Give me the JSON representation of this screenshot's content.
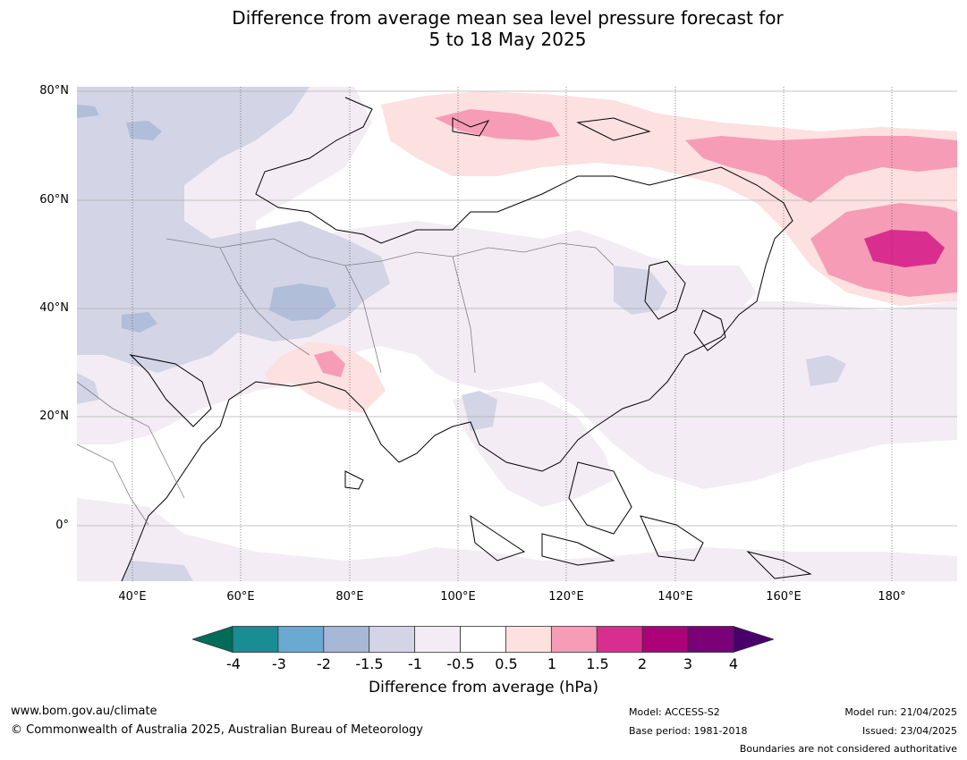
{
  "title": {
    "line1": "Difference from average mean sea level pressure forecast for",
    "line2": "5 to 18 May 2025"
  },
  "map": {
    "lat_labels": [
      "80°N",
      "60°N",
      "40°N",
      "20°N",
      "0°"
    ],
    "lon_labels": [
      "40°E",
      "60°E",
      "80°E",
      "100°E",
      "120°E",
      "140°E",
      "160°E",
      "180°"
    ],
    "extent": {
      "lon_min": 30,
      "lon_max": 192,
      "lat_min": -10,
      "lat_max": 81
    }
  },
  "colorbar": {
    "ticks": [
      "-4",
      "-3",
      "-2",
      "-1.5",
      "-1",
      "-0.5",
      "0.5",
      "1",
      "1.5",
      "2",
      "3",
      "4"
    ],
    "colors": [
      "#1a8c93",
      "#6aa9d1",
      "#a7b8d6",
      "#d3d4e6",
      "#f3ecf4",
      "#ffffff",
      "#fde0e0",
      "#f69cb6",
      "#d92e8f",
      "#ac0179",
      "#7a0177"
    ],
    "under_color": "#016c59",
    "over_color": "#49006a",
    "label": "Difference from average (hPa)"
  },
  "footer": {
    "website": "www.bom.gov.au/climate",
    "copyright": "© Commonwealth of Australia 2025, Australian Bureau of Meteorology",
    "model": "Model: ACCESS-S2",
    "base_period": "Base period: 1981-2018",
    "model_run": "Model run: 21/04/2025",
    "issued": "Issued: 23/04/2025",
    "disclaimer": "Boundaries are not considered authoritative"
  }
}
